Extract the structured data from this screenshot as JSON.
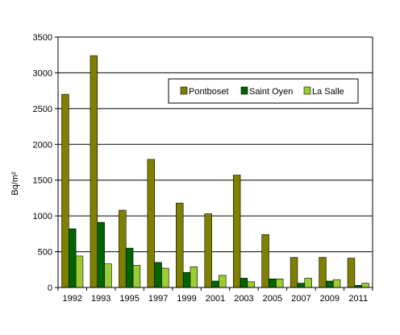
{
  "chart_data": {
    "type": "bar",
    "title": "",
    "xlabel": "",
    "ylabel": "Bq/m²",
    "ylim": [
      0,
      3500
    ],
    "yticks": [
      0,
      500,
      1000,
      1500,
      2000,
      2500,
      3000,
      3500
    ],
    "grid": true,
    "legend_position": "top-right",
    "categories": [
      "1992",
      "1993",
      "1995",
      "1997",
      "1999",
      "2001",
      "2003",
      "2005",
      "2007",
      "2009",
      "2011"
    ],
    "series": [
      {
        "name": "Pontboset",
        "color": "#808000",
        "values": [
          2700,
          3240,
          1080,
          1790,
          1180,
          1030,
          1570,
          740,
          420,
          420,
          410
        ]
      },
      {
        "name": "Saint Oyen",
        "color": "#006400",
        "values": [
          820,
          910,
          550,
          350,
          210,
          90,
          130,
          120,
          60,
          90,
          30
        ]
      },
      {
        "name": "La Salle",
        "color": "#9ACD32",
        "values": [
          440,
          330,
          310,
          270,
          290,
          170,
          80,
          120,
          130,
          110,
          60
        ]
      }
    ]
  }
}
